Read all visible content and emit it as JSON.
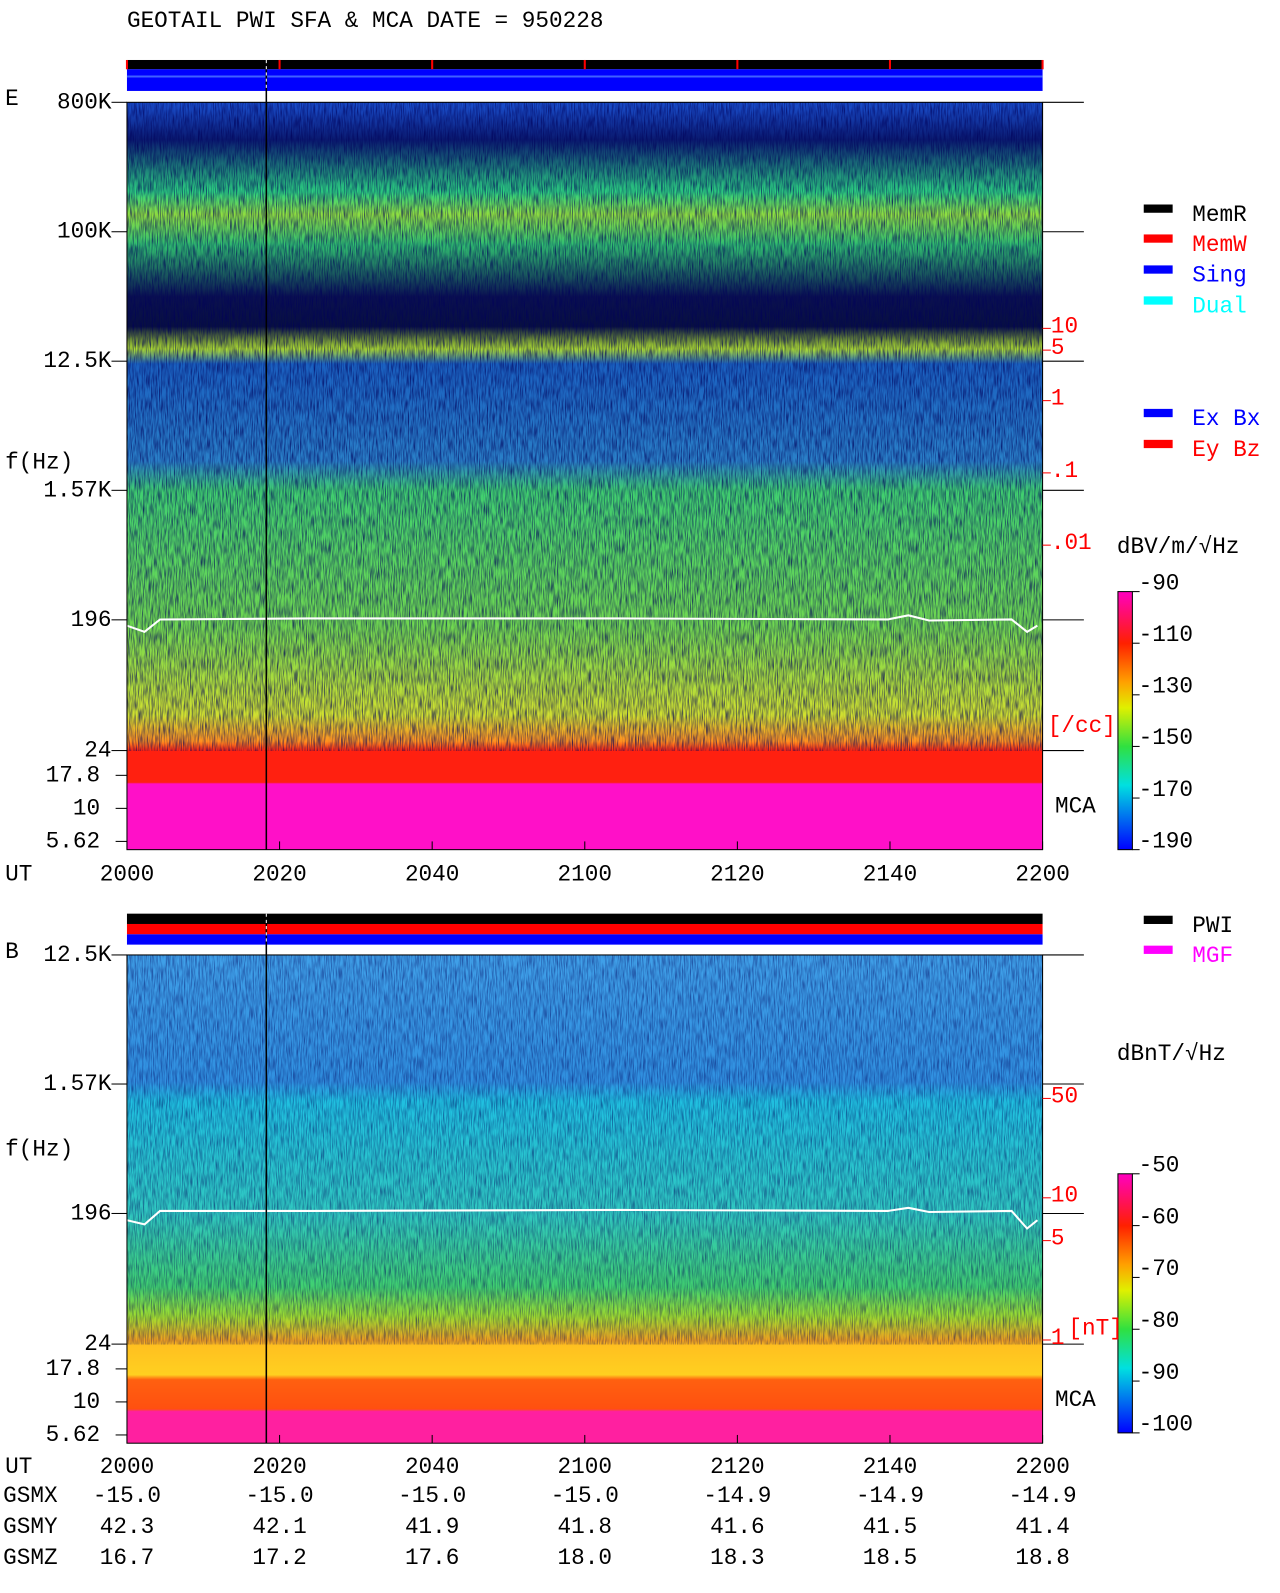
{
  "title": "GEOTAIL  PWI SFA & MCA   DATE = 950228",
  "chart_data": [
    {
      "type": "spectrogram",
      "panel": "E",
      "y_label": "f(Hz)",
      "yscale": "log",
      "ylim": [
        24,
        800000
      ],
      "yticks": [
        {
          "value": 800000,
          "label": "800K"
        },
        {
          "value": 100000,
          "label": "100K"
        },
        {
          "value": 12500,
          "label": "12.5K"
        },
        {
          "value": 1570,
          "label": "1.57K"
        },
        196,
        24
      ],
      "mca_label": "MCA",
      "mca_ticks": [
        17.8,
        10,
        5.62
      ],
      "x_label": "UT",
      "x_ticks": [
        "2000",
        "2020",
        "2040",
        "2100",
        "2120",
        "2140",
        "2200"
      ],
      "colorbar": {
        "unit": "dBV/m/√Hz",
        "lim": [
          -190,
          -90
        ],
        "ticks": [
          -90,
          -110,
          -130,
          -150,
          -170,
          -190
        ]
      },
      "density_scale": {
        "unit": "[/cc]",
        "lim": [
          0.01,
          10
        ],
        "ticks": [
          10,
          5,
          1,
          {
            "value": 0.1,
            "label": ".1"
          },
          {
            "value": 0.01,
            "label": ".01"
          }
        ]
      },
      "legend": [
        {
          "name": "MemR",
          "color": "#000000"
        },
        {
          "name": "MemW",
          "color": "#ff0000"
        },
        {
          "name": "Sing",
          "color": "#0000ff"
        },
        {
          "name": "Dual",
          "color": "#00ffff"
        }
      ],
      "legend2": [
        {
          "name": "Ex Bx",
          "color": "#0000ff"
        },
        {
          "name": "Ey Bz",
          "color": "#ff0000"
        }
      ]
    },
    {
      "type": "spectrogram",
      "panel": "B",
      "y_label": "f(Hz)",
      "yscale": "log",
      "ylim": [
        24,
        12500
      ],
      "yticks": [
        {
          "value": 12500,
          "label": "12.5K"
        },
        {
          "value": 1570,
          "label": "1.57K"
        },
        196,
        24
      ],
      "mca_label": "MCA",
      "mca_ticks": [
        17.8,
        10,
        5.62
      ],
      "x_label": "UT",
      "x_ticks": [
        "2000",
        "2020",
        "2040",
        "2100",
        "2120",
        "2140",
        "2200"
      ],
      "colorbar": {
        "unit": "dBnT/√Hz",
        "lim": [
          -100,
          -50
        ],
        "ticks": [
          -50,
          -60,
          -70,
          -80,
          -90,
          -100
        ]
      },
      "density_scale": {
        "unit": "[nT]",
        "lim": [
          1,
          50
        ],
        "ticks": [
          50,
          10,
          5,
          1
        ]
      },
      "legend": [
        {
          "name": "PWI",
          "color": "#000000"
        },
        {
          "name": "MGF",
          "color": "#ff00ff"
        }
      ]
    }
  ],
  "orbit": {
    "rows": [
      {
        "label": "GSMX",
        "values": [
          "-15.0",
          "-15.0",
          "-15.0",
          "-15.0",
          "-14.9",
          "-14.9",
          "-14.9"
        ]
      },
      {
        "label": "GSMY",
        "values": [
          "42.3",
          "42.1",
          "41.9",
          "41.8",
          "41.6",
          "41.5",
          "41.4"
        ]
      },
      {
        "label": "GSMZ",
        "values": [
          "16.7",
          "17.2",
          "17.6",
          "18.0",
          "18.3",
          "18.5",
          "18.8"
        ]
      }
    ]
  }
}
